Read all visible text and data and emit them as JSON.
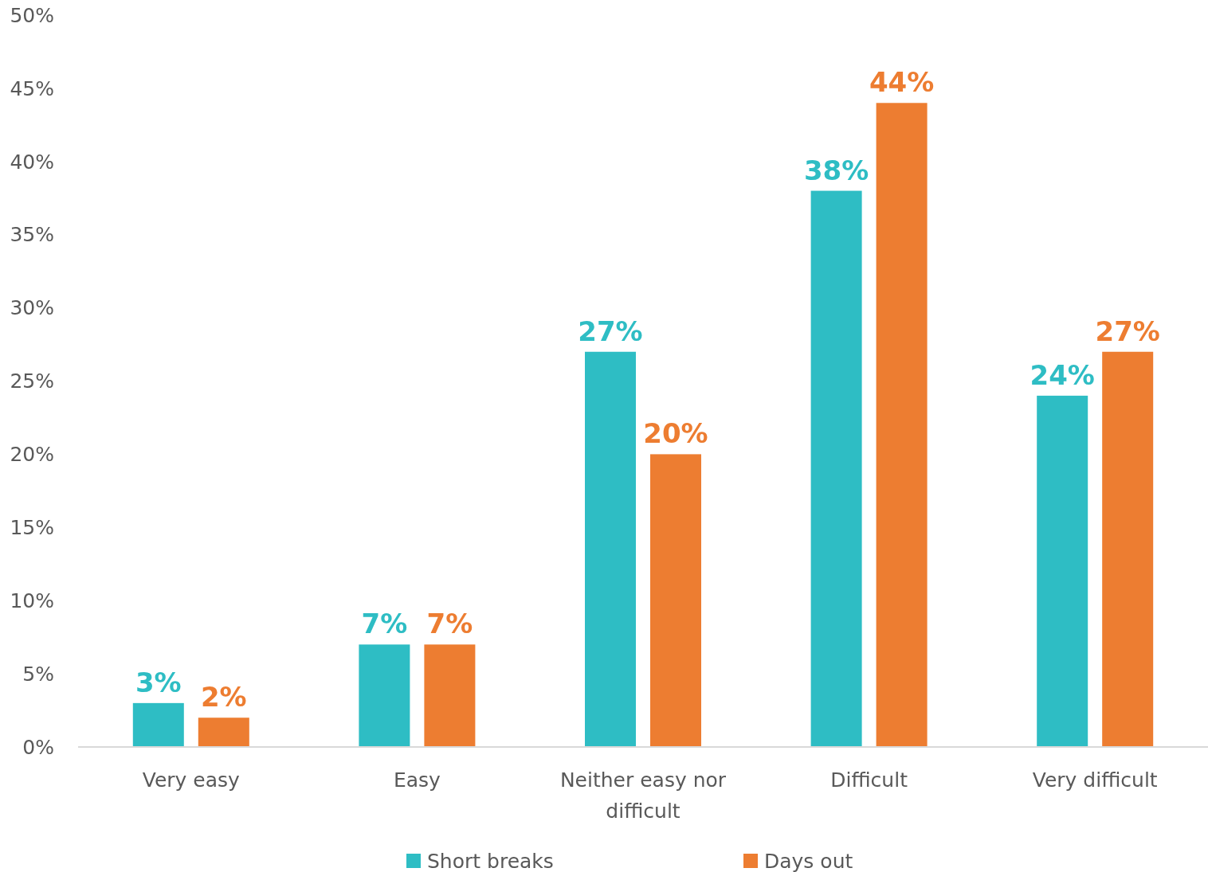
{
  "chart_data": {
    "type": "bar",
    "categories": [
      "Very easy",
      "Easy",
      "Neither easy nor difficult",
      "Difficult",
      "Very difficult"
    ],
    "series": [
      {
        "name": "Short breaks",
        "color": "#2ebdc4",
        "values": [
          3,
          7,
          27,
          38,
          24
        ],
        "value_labels": [
          "3%",
          "7%",
          "27%",
          "38%",
          "24%"
        ]
      },
      {
        "name": "Days out",
        "color": "#ed7d31",
        "values": [
          2,
          7,
          20,
          44,
          27
        ],
        "value_labels": [
          "2%",
          "7%",
          "20%",
          "44%",
          "27%"
        ]
      }
    ],
    "ylim": [
      0,
      50
    ],
    "yticks": [
      {
        "value": 0,
        "label": "0%"
      },
      {
        "value": 5,
        "label": "5%"
      },
      {
        "value": 10,
        "label": "10%"
      },
      {
        "value": 15,
        "label": "15%"
      },
      {
        "value": 20,
        "label": "20%"
      },
      {
        "value": 25,
        "label": "25%"
      },
      {
        "value": 30,
        "label": "30%"
      },
      {
        "value": 35,
        "label": "35%"
      },
      {
        "value": 40,
        "label": "40%"
      },
      {
        "value": 45,
        "label": "45%"
      },
      {
        "value": 50,
        "label": "50%"
      }
    ],
    "legend": "bottom"
  }
}
